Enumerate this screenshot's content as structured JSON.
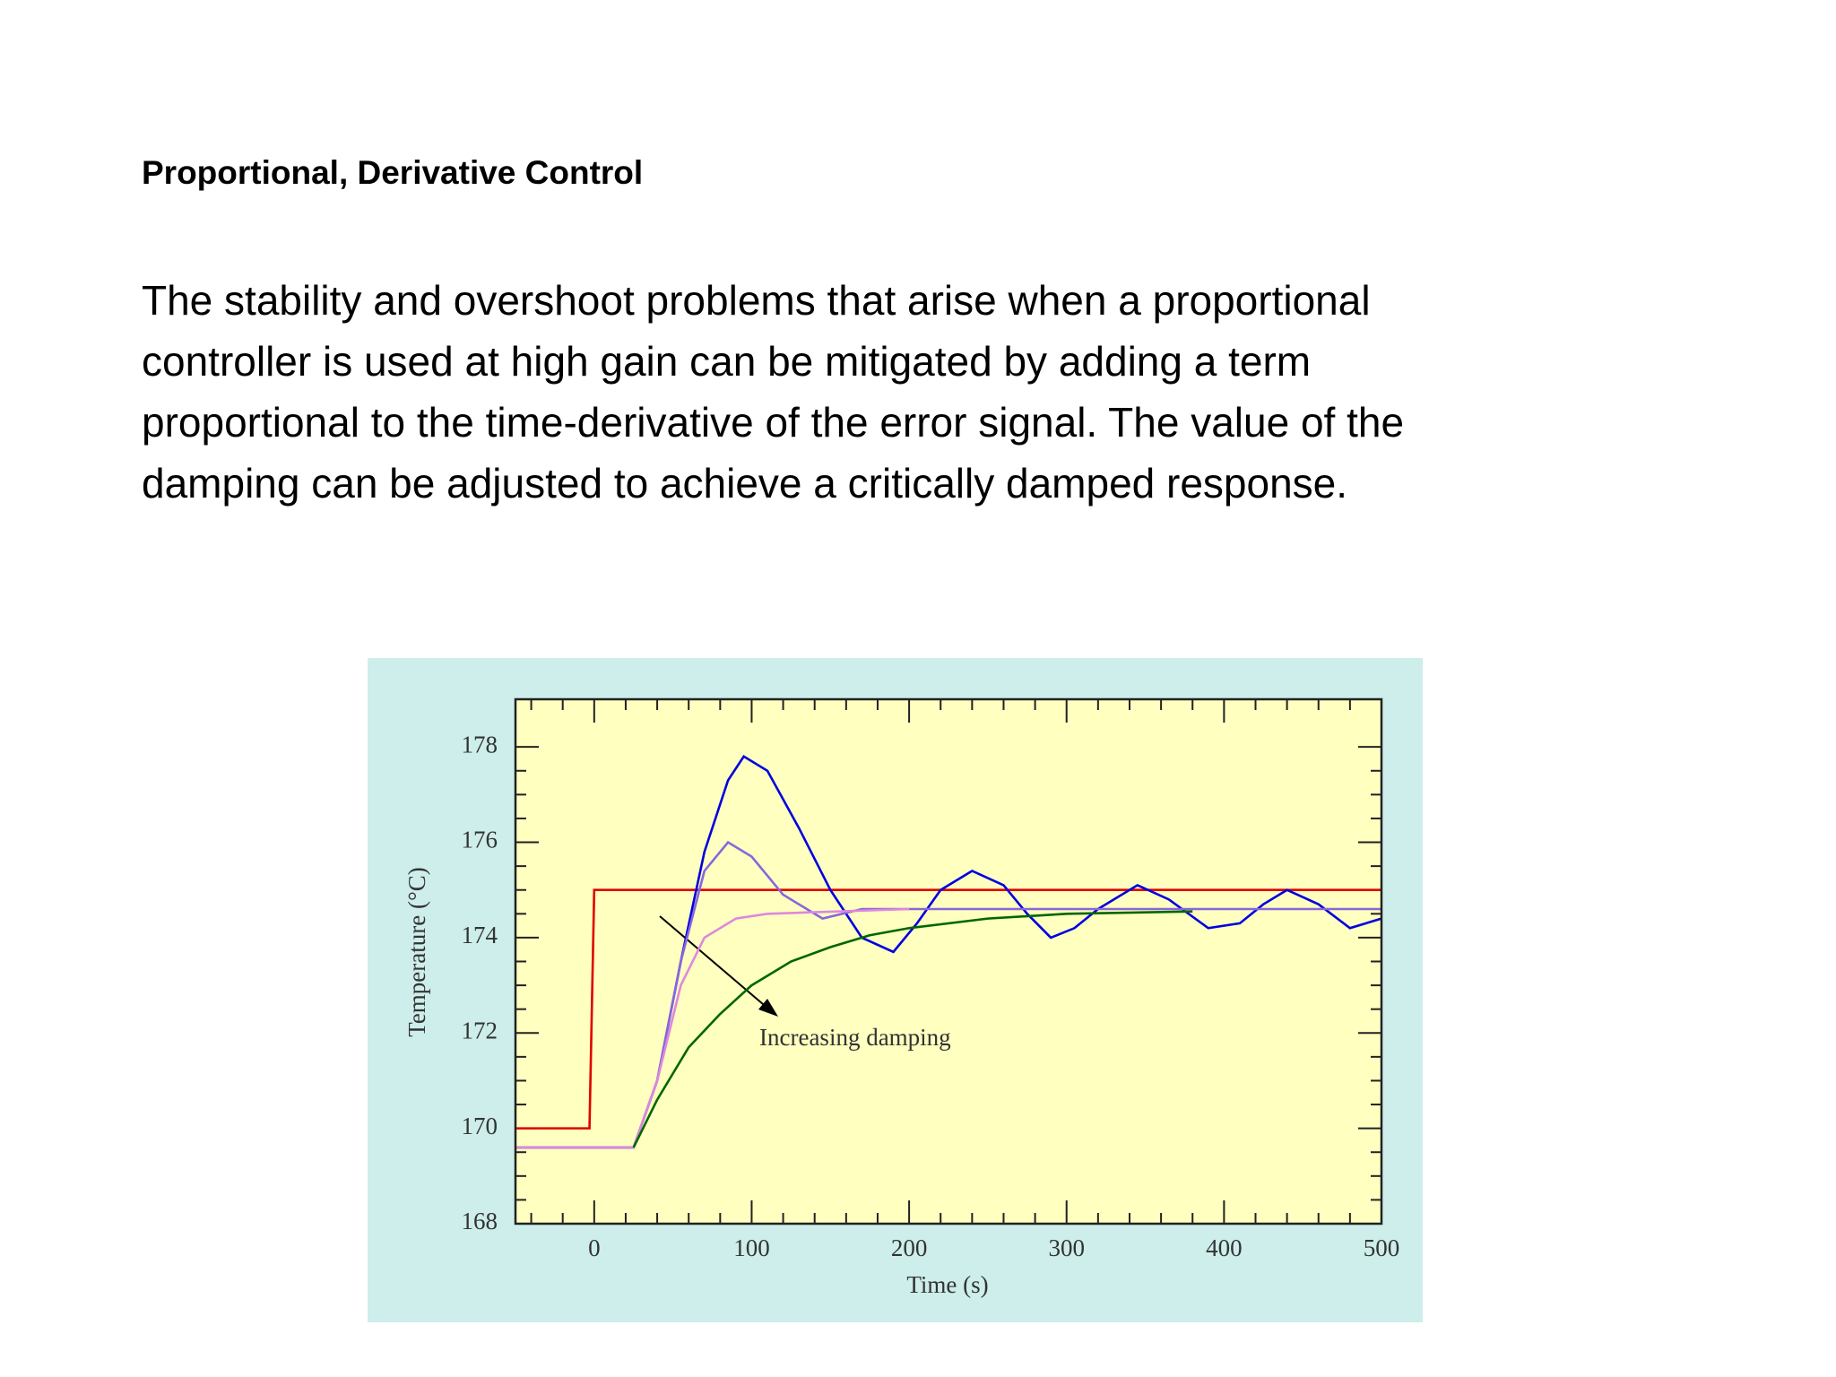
{
  "title": "Proportional,  Derivative Control",
  "paragraph_lines": [
    "The stability and overshoot problems that arise when a  proportional",
    "controller is used at high gain can be mitigated by adding a term",
    "proportional to the time-derivative of the error signal. The value of the",
    "damping can be adjusted to achieve a critically damped response."
  ],
  "chart_data": {
    "type": "line",
    "x_label": "Time (s)",
    "y_label": "Temperature (°C)",
    "annotation": "Increasing damping",
    "xlim": [
      -50,
      500
    ],
    "xticks": [
      0,
      100,
      200,
      300,
      400,
      500
    ],
    "ylim": [
      168,
      179
    ],
    "yticks": [
      168,
      170,
      172,
      174,
      176,
      178
    ],
    "series": [
      {
        "color": "#e00000",
        "x": [
          -50,
          -3,
          0,
          500
        ],
        "values": [
          170,
          170,
          175,
          175
        ]
      },
      {
        "color": "#0000e0",
        "x": [
          -50,
          25,
          40,
          55,
          70,
          85,
          95,
          110,
          130,
          150,
          170,
          190,
          205,
          220,
          240,
          260,
          275,
          290,
          305,
          320,
          345,
          365,
          390,
          410,
          425,
          440,
          460,
          480,
          500
        ],
        "values": [
          169.6,
          169.6,
          171,
          173.5,
          175.8,
          177.3,
          177.8,
          177.5,
          176.3,
          175,
          174,
          173.7,
          174.3,
          175,
          175.4,
          175.1,
          174.5,
          174.0,
          174.2,
          174.6,
          175.1,
          174.8,
          174.2,
          174.3,
          174.7,
          175.0,
          174.7,
          174.2,
          174.4
        ]
      },
      {
        "color": "#8866dd",
        "x": [
          -50,
          25,
          40,
          55,
          70,
          85,
          100,
          120,
          145,
          170,
          200,
          500
        ],
        "values": [
          169.6,
          169.6,
          171,
          173.5,
          175.4,
          176,
          175.7,
          174.9,
          174.4,
          174.6,
          174.6,
          174.6
        ]
      },
      {
        "color": "#dd88dd",
        "x": [
          -50,
          25,
          40,
          55,
          70,
          90,
          110,
          200
        ],
        "values": [
          169.6,
          169.6,
          171,
          173,
          174,
          174.4,
          174.5,
          174.6
        ]
      },
      {
        "color": "#006600",
        "x": [
          25,
          40,
          60,
          80,
          100,
          125,
          150,
          175,
          200,
          250,
          300,
          380
        ],
        "values": [
          169.6,
          170.6,
          171.7,
          172.4,
          173,
          173.5,
          173.8,
          174.05,
          174.2,
          174.4,
          174.5,
          174.55
        ]
      }
    ]
  }
}
